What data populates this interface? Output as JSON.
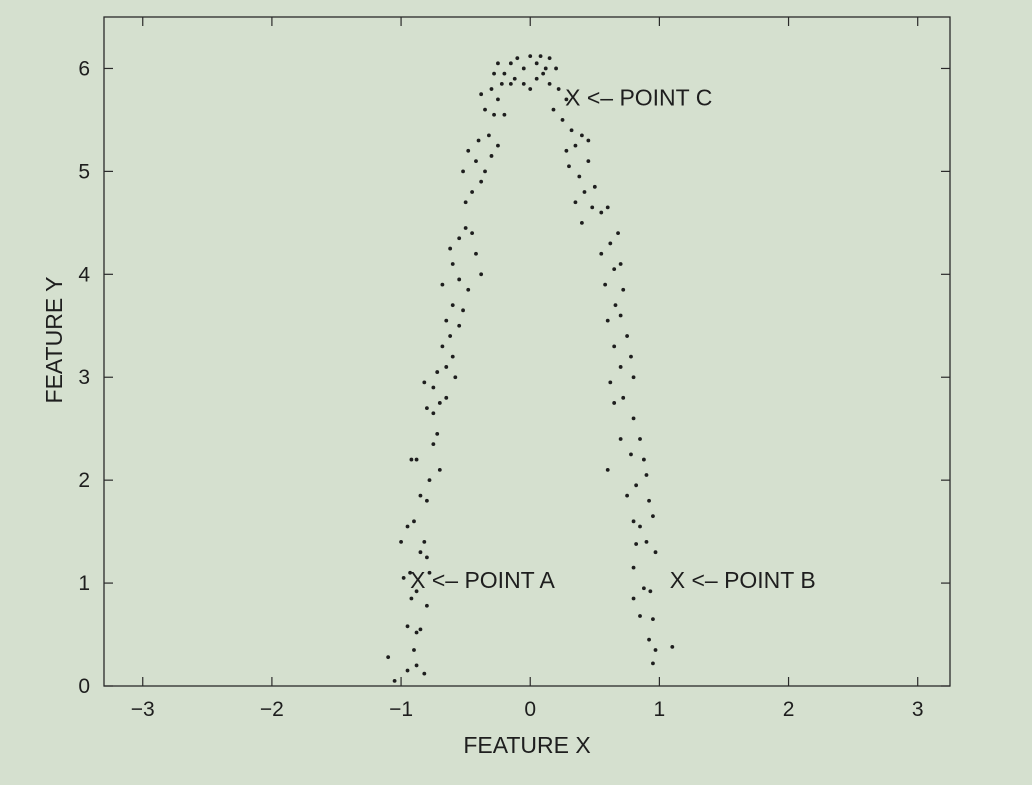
{
  "chart_data": {
    "type": "scatter",
    "title": "",
    "xlabel": "FEATURE X",
    "ylabel": "FEATURE Y",
    "xlim": [
      -3.3,
      3.25
    ],
    "ylim": [
      0,
      6.5
    ],
    "xticks": [
      -3,
      -2,
      -1,
      0,
      1,
      2,
      3
    ],
    "xtick_labels": [
      "−3",
      "−2",
      "−1",
      "0",
      "1",
      "2",
      "3"
    ],
    "yticks": [
      0,
      1,
      2,
      3,
      4,
      5,
      6
    ],
    "ytick_labels": [
      "0",
      "1",
      "2",
      "3",
      "4",
      "5",
      "6"
    ],
    "grid": false,
    "legend": "none",
    "point_color": "#1e1e1e",
    "series": [
      {
        "marker": "dot",
        "points": [
          [
            -1.1,
            0.28
          ],
          [
            -1.05,
            0.05
          ],
          [
            -0.95,
            0.15
          ],
          [
            -0.9,
            0.35
          ],
          [
            -0.88,
            0.2
          ],
          [
            -0.82,
            0.12
          ],
          [
            -0.95,
            0.58
          ],
          [
            -0.88,
            0.52
          ],
          [
            -0.85,
            0.55
          ],
          [
            -0.92,
            0.85
          ],
          [
            -0.88,
            0.92
          ],
          [
            -0.8,
            0.78
          ],
          [
            -0.98,
            1.05
          ],
          [
            -0.93,
            1.1
          ],
          [
            -1.0,
            1.4
          ],
          [
            -0.95,
            1.55
          ],
          [
            -0.9,
            1.6
          ],
          [
            -0.82,
            1.4
          ],
          [
            -0.8,
            1.25
          ],
          [
            -0.78,
            1.1
          ],
          [
            -0.85,
            1.85
          ],
          [
            -0.8,
            1.8
          ],
          [
            -0.78,
            2.0
          ],
          [
            -0.92,
            2.2
          ],
          [
            -0.88,
            2.2
          ],
          [
            -0.75,
            2.35
          ],
          [
            -0.7,
            2.1
          ],
          [
            -0.72,
            2.45
          ],
          [
            -0.8,
            2.7
          ],
          [
            -0.75,
            2.65
          ],
          [
            -0.7,
            2.75
          ],
          [
            -0.82,
            2.95
          ],
          [
            -0.72,
            3.05
          ],
          [
            -0.65,
            3.1
          ],
          [
            -0.68,
            3.3
          ],
          [
            -0.6,
            3.2
          ],
          [
            -0.62,
            3.4
          ],
          [
            -0.58,
            3.0
          ],
          [
            -0.55,
            3.5
          ],
          [
            -0.65,
            3.55
          ],
          [
            -0.6,
            3.7
          ],
          [
            -0.52,
            3.65
          ],
          [
            -0.68,
            3.9
          ],
          [
            -0.55,
            3.95
          ],
          [
            -0.48,
            3.85
          ],
          [
            -0.6,
            4.1
          ],
          [
            -0.62,
            4.25
          ],
          [
            -0.55,
            4.35
          ],
          [
            -0.5,
            4.45
          ],
          [
            -0.45,
            4.4
          ],
          [
            -0.42,
            4.2
          ],
          [
            -0.38,
            4.0
          ],
          [
            -0.5,
            4.7
          ],
          [
            -0.45,
            4.8
          ],
          [
            -0.38,
            4.9
          ],
          [
            -0.52,
            5.0
          ],
          [
            -0.42,
            5.1
          ],
          [
            -0.35,
            5.0
          ],
          [
            -0.48,
            5.2
          ],
          [
            -0.3,
            5.15
          ],
          [
            -0.4,
            5.3
          ],
          [
            -0.32,
            5.35
          ],
          [
            -0.28,
            5.55
          ],
          [
            -0.2,
            5.55
          ],
          [
            -0.35,
            5.6
          ],
          [
            -0.25,
            5.7
          ],
          [
            -0.38,
            5.75
          ],
          [
            -0.3,
            5.8
          ],
          [
            -0.22,
            5.85
          ],
          [
            -0.15,
            5.85
          ],
          [
            -0.28,
            5.95
          ],
          [
            -0.2,
            5.95
          ],
          [
            -0.12,
            5.9
          ],
          [
            -0.05,
            5.85
          ],
          [
            -0.25,
            6.05
          ],
          [
            -0.15,
            6.05
          ],
          [
            -0.05,
            6.0
          ],
          [
            0.05,
            6.05
          ],
          [
            -0.1,
            6.1
          ],
          [
            0.0,
            6.12
          ],
          [
            0.08,
            6.12
          ],
          [
            0.12,
            6.0
          ],
          [
            0.15,
            6.1
          ],
          [
            0.2,
            6.0
          ],
          [
            0.05,
            5.9
          ],
          [
            0.15,
            5.85
          ],
          [
            0.0,
            5.8
          ],
          [
            0.22,
            5.8
          ],
          [
            0.18,
            5.6
          ],
          [
            0.28,
            5.7
          ],
          [
            0.25,
            5.5
          ],
          [
            0.32,
            5.4
          ],
          [
            0.35,
            5.25
          ],
          [
            0.28,
            5.2
          ],
          [
            0.4,
            5.35
          ],
          [
            0.3,
            5.05
          ],
          [
            0.38,
            4.95
          ],
          [
            0.45,
            5.1
          ],
          [
            0.42,
            4.8
          ],
          [
            0.35,
            4.7
          ],
          [
            0.48,
            4.65
          ],
          [
            0.5,
            4.85
          ],
          [
            0.55,
            4.6
          ],
          [
            0.4,
            4.5
          ],
          [
            0.6,
            4.65
          ],
          [
            0.62,
            4.3
          ],
          [
            0.55,
            4.2
          ],
          [
            0.65,
            4.05
          ],
          [
            0.7,
            4.1
          ],
          [
            0.58,
            3.9
          ],
          [
            0.72,
            3.85
          ],
          [
            0.66,
            3.7
          ],
          [
            0.6,
            3.55
          ],
          [
            0.7,
            3.6
          ],
          [
            0.75,
            3.4
          ],
          [
            0.65,
            3.3
          ],
          [
            0.78,
            3.2
          ],
          [
            0.7,
            3.1
          ],
          [
            0.62,
            2.95
          ],
          [
            0.8,
            3.0
          ],
          [
            0.72,
            2.8
          ],
          [
            0.65,
            2.75
          ],
          [
            0.8,
            2.6
          ],
          [
            0.85,
            2.4
          ],
          [
            0.7,
            2.4
          ],
          [
            0.78,
            2.25
          ],
          [
            0.88,
            2.2
          ],
          [
            0.9,
            2.05
          ],
          [
            0.82,
            1.95
          ],
          [
            0.75,
            1.85
          ],
          [
            0.92,
            1.8
          ],
          [
            0.8,
            1.6
          ],
          [
            0.95,
            1.65
          ],
          [
            0.85,
            1.55
          ],
          [
            0.82,
            1.38
          ],
          [
            0.9,
            1.4
          ],
          [
            0.97,
            1.3
          ],
          [
            0.8,
            1.15
          ],
          [
            0.88,
            0.95
          ],
          [
            0.93,
            0.92
          ],
          [
            0.8,
            0.85
          ],
          [
            0.85,
            0.68
          ],
          [
            0.95,
            0.65
          ],
          [
            0.92,
            0.45
          ],
          [
            0.97,
            0.35
          ],
          [
            0.95,
            0.22
          ],
          [
            1.1,
            0.38
          ],
          [
            -0.85,
            1.3
          ],
          [
            -0.65,
            2.8
          ],
          [
            -0.25,
            5.25
          ],
          [
            0.45,
            5.3
          ],
          [
            0.68,
            4.4
          ],
          [
            0.6,
            2.1
          ],
          [
            -0.75,
            2.9
          ],
          [
            0.1,
            5.95
          ]
        ]
      }
    ],
    "annotations": [
      {
        "x": -0.93,
        "y": 1.03,
        "text": "X <– POINT A"
      },
      {
        "x": 1.08,
        "y": 1.03,
        "text": "X <– POINT B"
      },
      {
        "x": 0.27,
        "y": 5.72,
        "text": "X <– POINT C"
      }
    ]
  }
}
